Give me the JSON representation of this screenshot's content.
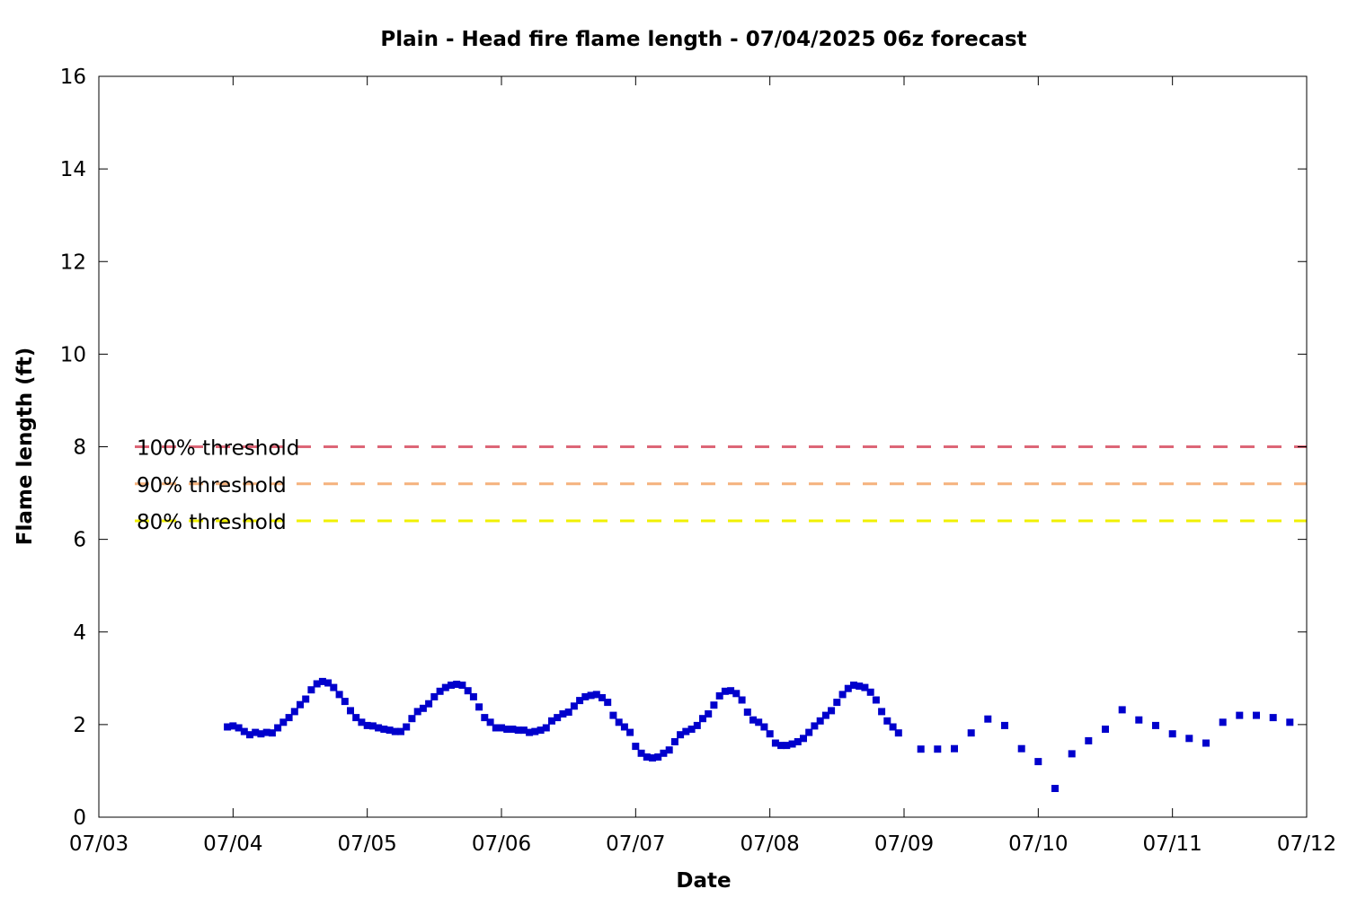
{
  "chart_data": {
    "type": "scatter",
    "title": "Plain - Head fire flame length - 07/04/2025 06z forecast",
    "xlabel": "Date",
    "ylabel": "Flame length (ft)",
    "x_unit": "day",
    "xlim": [
      "07/03",
      "07/12"
    ],
    "ylim": [
      0,
      16
    ],
    "xticks": [
      "07/03",
      "07/04",
      "07/05",
      "07/06",
      "07/07",
      "07/08",
      "07/09",
      "07/10",
      "07/11",
      "07/12"
    ],
    "yticks": [
      0,
      2,
      4,
      6,
      8,
      10,
      12,
      14,
      16
    ],
    "grid": false,
    "marker_color": "#0000cc",
    "thresholds": [
      {
        "label": "100% threshold",
        "value": 8.0,
        "color": "#dd6677"
      },
      {
        "label": "90% threshold",
        "value": 7.2,
        "color": "#f5b27d"
      },
      {
        "label": "80% threshold",
        "value": 6.4,
        "color": "#f0f000"
      }
    ],
    "series": [
      {
        "points": [
          [
            "07/03 23:00",
            1.95
          ],
          [
            "07/04 00:00",
            1.97
          ],
          [
            "07/04 01:00",
            1.93
          ],
          [
            "07/04 02:00",
            1.85
          ],
          [
            "07/04 03:00",
            1.78
          ],
          [
            "07/04 04:00",
            1.83
          ],
          [
            "07/04 05:00",
            1.8
          ],
          [
            "07/04 06:00",
            1.83
          ],
          [
            "07/04 07:00",
            1.82
          ],
          [
            "07/04 08:00",
            1.93
          ],
          [
            "07/04 09:00",
            2.05
          ],
          [
            "07/04 10:00",
            2.15
          ],
          [
            "07/04 11:00",
            2.28
          ],
          [
            "07/04 12:00",
            2.43
          ],
          [
            "07/04 13:00",
            2.55
          ],
          [
            "07/04 14:00",
            2.75
          ],
          [
            "07/04 15:00",
            2.88
          ],
          [
            "07/04 16:00",
            2.93
          ],
          [
            "07/04 17:00",
            2.9
          ],
          [
            "07/04 18:00",
            2.8
          ],
          [
            "07/04 19:00",
            2.65
          ],
          [
            "07/04 20:00",
            2.5
          ],
          [
            "07/04 21:00",
            2.3
          ],
          [
            "07/04 22:00",
            2.15
          ],
          [
            "07/04 23:00",
            2.05
          ],
          [
            "07/05 00:00",
            1.98
          ],
          [
            "07/05 01:00",
            1.97
          ],
          [
            "07/05 02:00",
            1.93
          ],
          [
            "07/05 03:00",
            1.9
          ],
          [
            "07/05 04:00",
            1.88
          ],
          [
            "07/05 05:00",
            1.85
          ],
          [
            "07/05 06:00",
            1.85
          ],
          [
            "07/05 07:00",
            1.95
          ],
          [
            "07/05 08:00",
            2.13
          ],
          [
            "07/05 09:00",
            2.28
          ],
          [
            "07/05 10:00",
            2.35
          ],
          [
            "07/05 11:00",
            2.45
          ],
          [
            "07/05 12:00",
            2.6
          ],
          [
            "07/05 13:00",
            2.72
          ],
          [
            "07/05 14:00",
            2.8
          ],
          [
            "07/05 15:00",
            2.85
          ],
          [
            "07/05 16:00",
            2.87
          ],
          [
            "07/05 17:00",
            2.85
          ],
          [
            "07/05 18:00",
            2.73
          ],
          [
            "07/05 19:00",
            2.6
          ],
          [
            "07/05 20:00",
            2.38
          ],
          [
            "07/05 21:00",
            2.15
          ],
          [
            "07/05 22:00",
            2.05
          ],
          [
            "07/05 23:00",
            1.93
          ],
          [
            "07/06 00:00",
            1.93
          ],
          [
            "07/06 01:00",
            1.9
          ],
          [
            "07/06 02:00",
            1.9
          ],
          [
            "07/06 03:00",
            1.88
          ],
          [
            "07/06 04:00",
            1.88
          ],
          [
            "07/06 05:00",
            1.83
          ],
          [
            "07/06 06:00",
            1.85
          ],
          [
            "07/06 07:00",
            1.88
          ],
          [
            "07/06 08:00",
            1.93
          ],
          [
            "07/06 09:00",
            2.08
          ],
          [
            "07/06 10:00",
            2.15
          ],
          [
            "07/06 11:00",
            2.23
          ],
          [
            "07/06 12:00",
            2.27
          ],
          [
            "07/06 13:00",
            2.4
          ],
          [
            "07/06 14:00",
            2.52
          ],
          [
            "07/06 15:00",
            2.6
          ],
          [
            "07/06 16:00",
            2.63
          ],
          [
            "07/06 17:00",
            2.65
          ],
          [
            "07/06 18:00",
            2.58
          ],
          [
            "07/06 19:00",
            2.48
          ],
          [
            "07/06 20:00",
            2.2
          ],
          [
            "07/06 21:00",
            2.05
          ],
          [
            "07/06 22:00",
            1.95
          ],
          [
            "07/06 23:00",
            1.83
          ],
          [
            "07/07 00:00",
            1.53
          ],
          [
            "07/07 01:00",
            1.38
          ],
          [
            "07/07 02:00",
            1.3
          ],
          [
            "07/07 03:00",
            1.28
          ],
          [
            "07/07 04:00",
            1.3
          ],
          [
            "07/07 05:00",
            1.38
          ],
          [
            "07/07 06:00",
            1.45
          ],
          [
            "07/07 07:00",
            1.63
          ],
          [
            "07/07 08:00",
            1.78
          ],
          [
            "07/07 09:00",
            1.85
          ],
          [
            "07/07 10:00",
            1.9
          ],
          [
            "07/07 11:00",
            1.98
          ],
          [
            "07/07 12:00",
            2.13
          ],
          [
            "07/07 13:00",
            2.23
          ],
          [
            "07/07 14:00",
            2.42
          ],
          [
            "07/07 15:00",
            2.62
          ],
          [
            "07/07 16:00",
            2.72
          ],
          [
            "07/07 17:00",
            2.73
          ],
          [
            "07/07 18:00",
            2.67
          ],
          [
            "07/07 19:00",
            2.53
          ],
          [
            "07/07 20:00",
            2.27
          ],
          [
            "07/07 21:00",
            2.1
          ],
          [
            "07/07 22:00",
            2.05
          ],
          [
            "07/07 23:00",
            1.95
          ],
          [
            "07/08 00:00",
            1.8
          ],
          [
            "07/08 01:00",
            1.6
          ],
          [
            "07/08 02:00",
            1.55
          ],
          [
            "07/08 03:00",
            1.55
          ],
          [
            "07/08 04:00",
            1.58
          ],
          [
            "07/08 05:00",
            1.63
          ],
          [
            "07/08 06:00",
            1.7
          ],
          [
            "07/08 07:00",
            1.83
          ],
          [
            "07/08 08:00",
            1.97
          ],
          [
            "07/08 09:00",
            2.08
          ],
          [
            "07/08 10:00",
            2.2
          ],
          [
            "07/08 11:00",
            2.3
          ],
          [
            "07/08 12:00",
            2.48
          ],
          [
            "07/08 13:00",
            2.65
          ],
          [
            "07/08 14:00",
            2.78
          ],
          [
            "07/08 15:00",
            2.85
          ],
          [
            "07/08 16:00",
            2.83
          ],
          [
            "07/08 17:00",
            2.8
          ],
          [
            "07/08 18:00",
            2.7
          ],
          [
            "07/08 19:00",
            2.53
          ],
          [
            "07/08 20:00",
            2.28
          ],
          [
            "07/08 21:00",
            2.08
          ],
          [
            "07/08 22:00",
            1.95
          ],
          [
            "07/08 23:00",
            1.82
          ],
          [
            "07/09 03:00",
            1.47
          ],
          [
            "07/09 06:00",
            1.47
          ],
          [
            "07/09 09:00",
            1.48
          ],
          [
            "07/09 12:00",
            1.82
          ],
          [
            "07/09 15:00",
            2.12
          ],
          [
            "07/09 18:00",
            1.98
          ],
          [
            "07/09 21:00",
            1.48
          ],
          [
            "07/10 00:00",
            1.2
          ],
          [
            "07/10 03:00",
            0.62
          ],
          [
            "07/10 06:00",
            1.37
          ],
          [
            "07/10 09:00",
            1.65
          ],
          [
            "07/10 12:00",
            1.9
          ],
          [
            "07/10 15:00",
            2.32
          ],
          [
            "07/10 18:00",
            2.1
          ],
          [
            "07/10 21:00",
            1.98
          ],
          [
            "07/11 00:00",
            1.8
          ],
          [
            "07/11 03:00",
            1.7
          ],
          [
            "07/11 06:00",
            1.6
          ],
          [
            "07/11 09:00",
            2.05
          ],
          [
            "07/11 12:00",
            2.2
          ],
          [
            "07/11 15:00",
            2.2
          ],
          [
            "07/11 18:00",
            2.15
          ],
          [
            "07/11 21:00",
            2.05
          ]
        ]
      }
    ]
  }
}
